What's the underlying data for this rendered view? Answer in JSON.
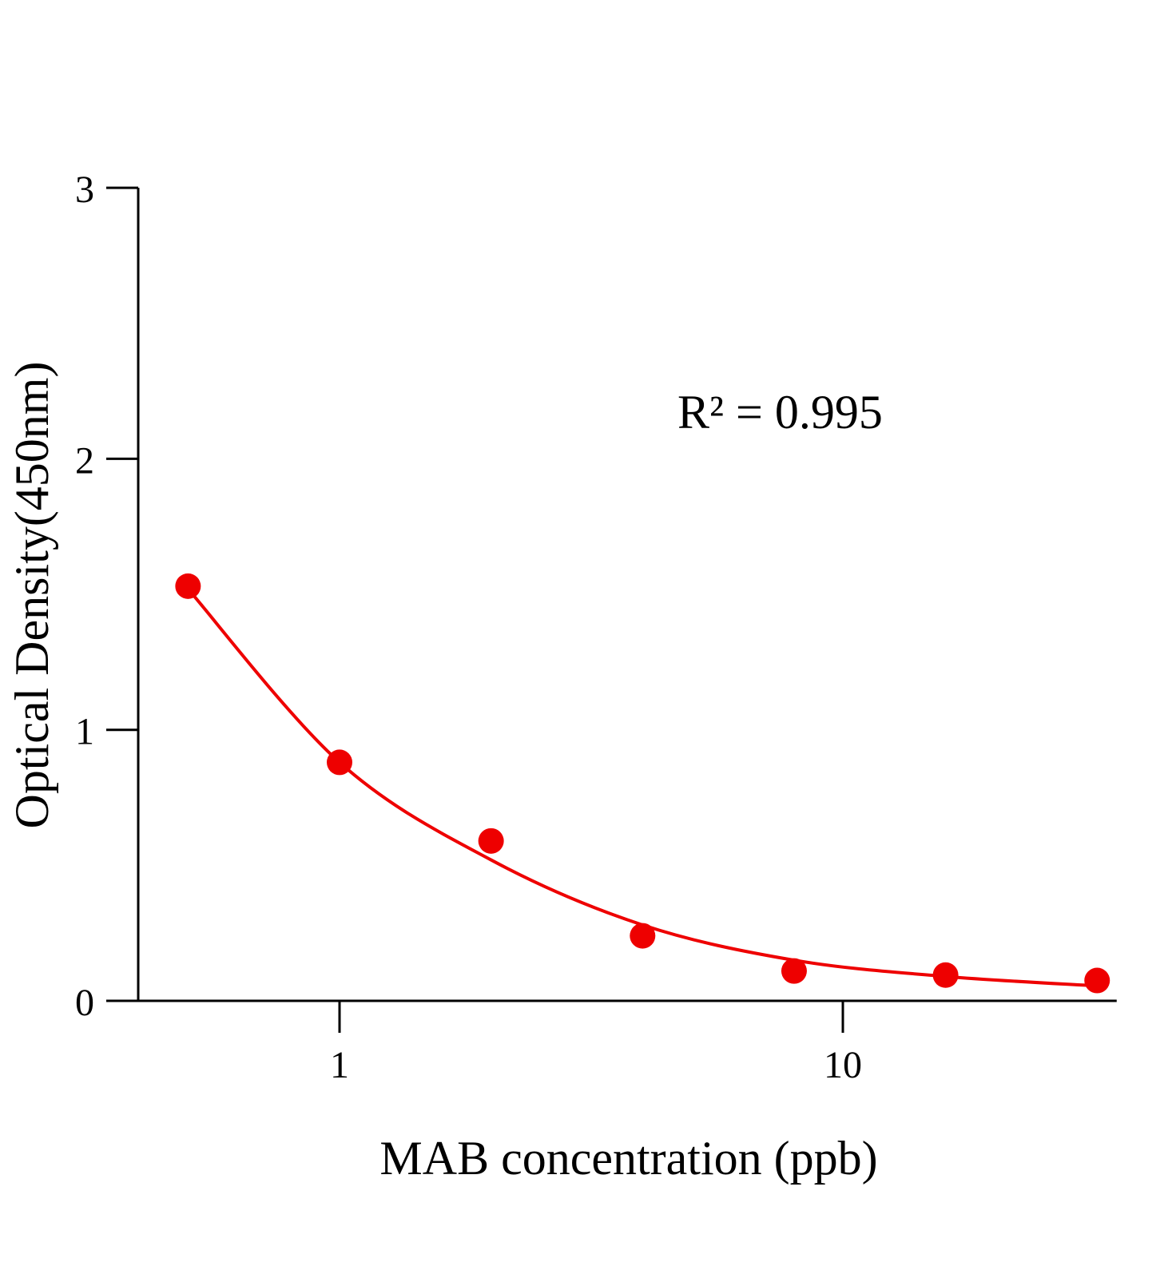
{
  "chart_data": {
    "type": "scatter",
    "title": "",
    "xlabel": "MAB concentration (ppb)",
    "ylabel": "Optical Density(450nm)",
    "x_scale": "log",
    "xlim": [
      0.35,
      35
    ],
    "ylim": [
      0,
      3
    ],
    "x_ticks": [
      1,
      10
    ],
    "x_tick_labels": [
      "1",
      "10"
    ],
    "y_ticks": [
      0,
      1,
      2,
      3
    ],
    "y_tick_labels": [
      "0",
      "1",
      "2",
      "3"
    ],
    "grid": false,
    "legend": "none",
    "annotation": "R² = 0.995",
    "color": "#ee0000",
    "points": {
      "x": [
        0.5,
        1,
        2,
        4,
        8,
        16,
        32
      ],
      "y": [
        1.53,
        0.88,
        0.59,
        0.24,
        0.11,
        0.095,
        0.075
      ]
    },
    "fit_curve": {
      "x": [
        0.5,
        1,
        2,
        4,
        8,
        16,
        32
      ],
      "y": [
        1.52,
        0.88,
        0.52,
        0.28,
        0.15,
        0.09,
        0.055
      ]
    }
  }
}
